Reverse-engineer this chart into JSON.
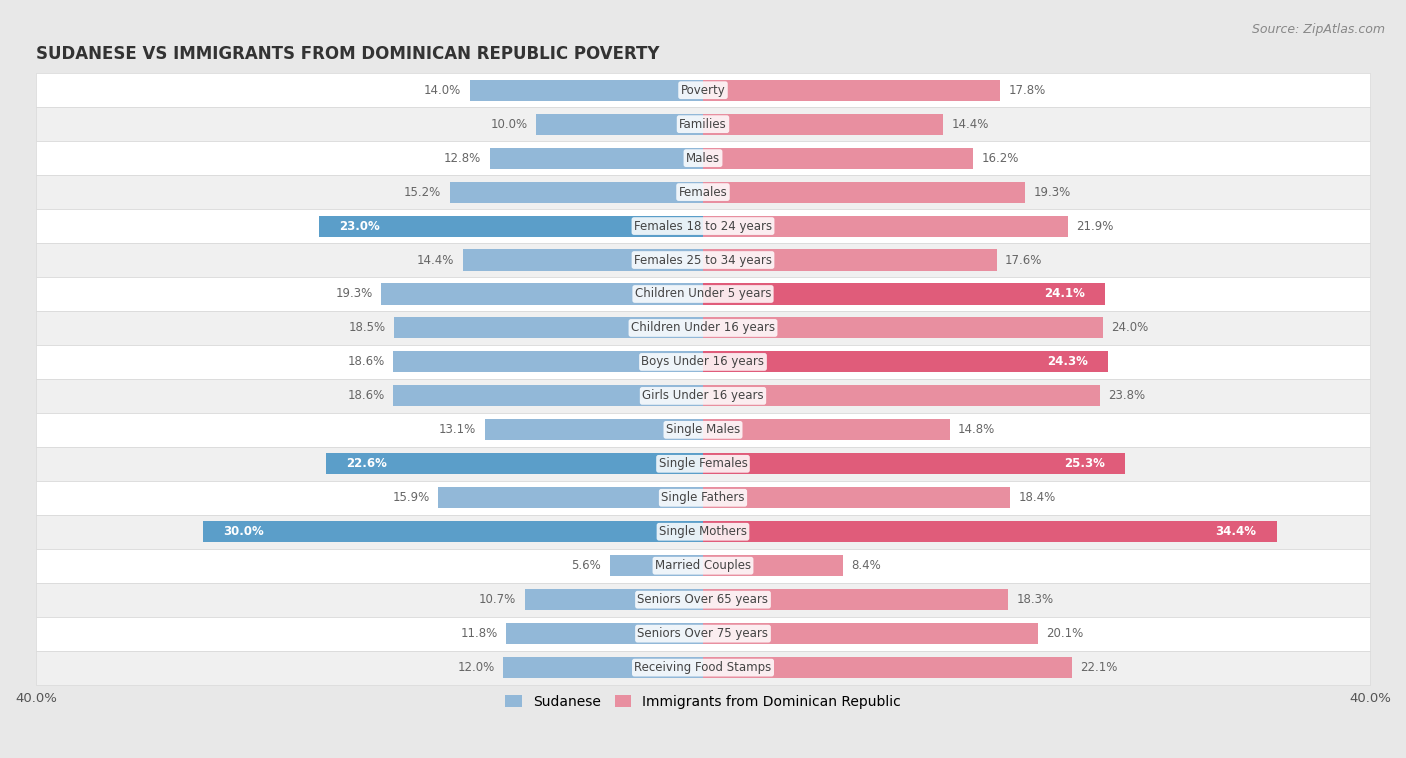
{
  "title": "SUDANESE VS IMMIGRANTS FROM DOMINICAN REPUBLIC POVERTY",
  "source": "Source: ZipAtlas.com",
  "categories": [
    "Poverty",
    "Families",
    "Males",
    "Females",
    "Females 18 to 24 years",
    "Females 25 to 34 years",
    "Children Under 5 years",
    "Children Under 16 years",
    "Boys Under 16 years",
    "Girls Under 16 years",
    "Single Males",
    "Single Females",
    "Single Fathers",
    "Single Mothers",
    "Married Couples",
    "Seniors Over 65 years",
    "Seniors Over 75 years",
    "Receiving Food Stamps"
  ],
  "sudanese": [
    14.0,
    10.0,
    12.8,
    15.2,
    23.0,
    14.4,
    19.3,
    18.5,
    18.6,
    18.6,
    13.1,
    22.6,
    15.9,
    30.0,
    5.6,
    10.7,
    11.8,
    12.0
  ],
  "dominican": [
    17.8,
    14.4,
    16.2,
    19.3,
    21.9,
    17.6,
    24.1,
    24.0,
    24.3,
    23.8,
    14.8,
    25.3,
    18.4,
    34.4,
    8.4,
    18.3,
    20.1,
    22.1
  ],
  "sudanese_color": "#92b8d8",
  "dominican_color": "#e88fa0",
  "highlight_label_color": "#ffffff",
  "normal_label_color": "#666666",
  "highlight_sudanese": [
    4,
    11,
    13
  ],
  "highlight_dominican": [
    6,
    8,
    11,
    13
  ],
  "highlight_sudanese_color": "#5b9ec9",
  "highlight_dominican_color": "#e05c7a",
  "fig_bg_color": "#e8e8e8",
  "plot_bg_color": "#ffffff",
  "row_even_color": "#ffffff",
  "row_odd_color": "#f0f0f0",
  "row_border_color": "#d8d8d8",
  "xlim": 40.0,
  "bar_height": 0.62,
  "title_fontsize": 12,
  "source_fontsize": 9,
  "label_fontsize": 8.5,
  "value_fontsize": 8.5,
  "legend_fontsize": 10,
  "legend_sudanese": "Sudanese",
  "legend_dominican": "Immigrants from Dominican Republic"
}
